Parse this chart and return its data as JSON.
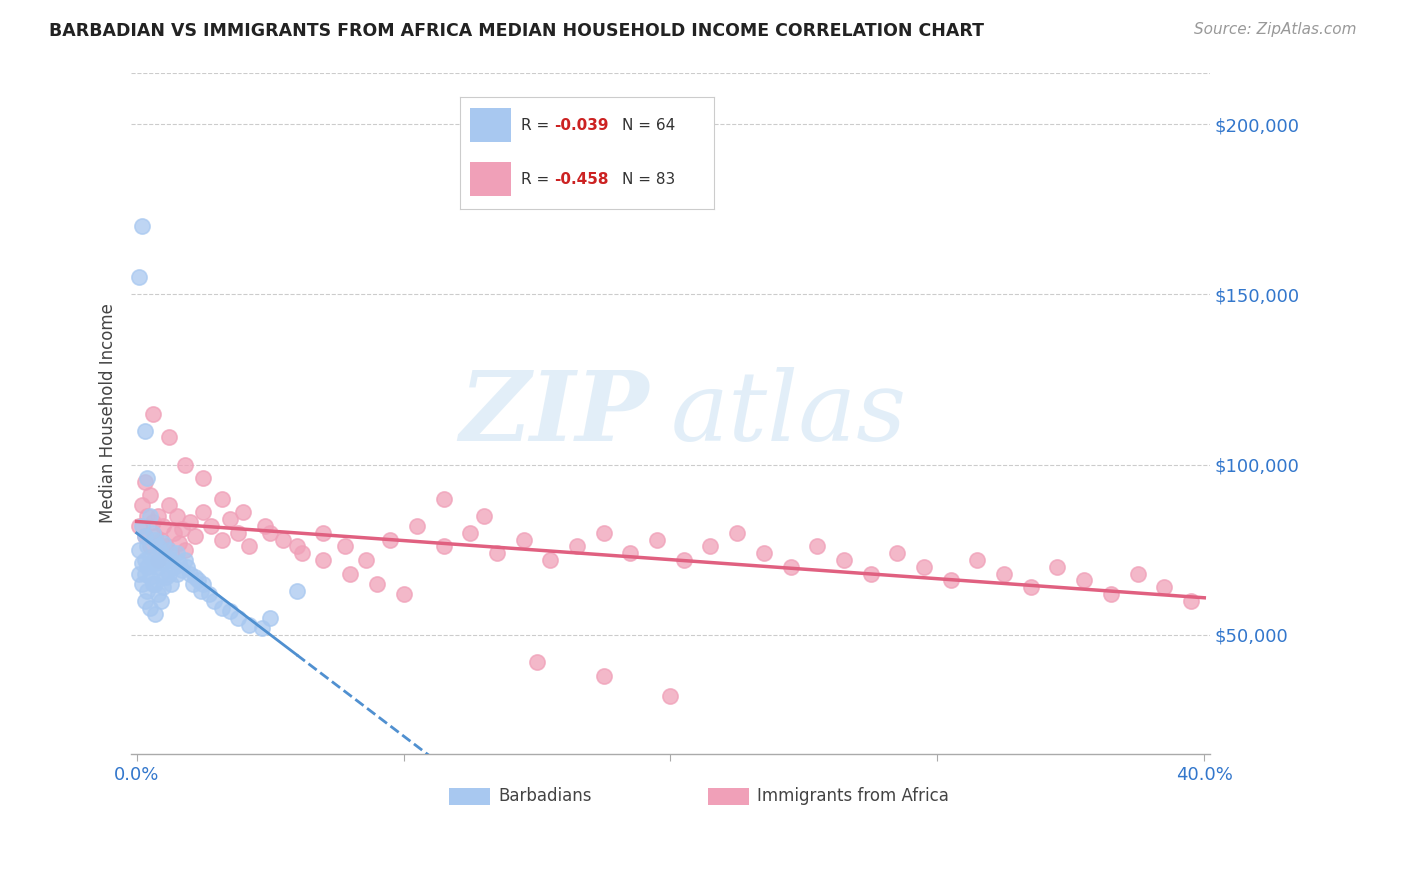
{
  "title": "BARBADIAN VS IMMIGRANTS FROM AFRICA MEDIAN HOUSEHOLD INCOME CORRELATION CHART",
  "source": "Source: ZipAtlas.com",
  "ylabel": "Median Household Income",
  "xlim": [
    -0.002,
    0.402
  ],
  "ylim": [
    15000,
    215000
  ],
  "yticks": [
    50000,
    100000,
    150000,
    200000
  ],
  "ytick_labels": [
    "$50,000",
    "$100,000",
    "$150,000",
    "$200,000"
  ],
  "xticks": [
    0.0,
    0.1,
    0.2,
    0.3,
    0.4
  ],
  "xtick_labels": [
    "0.0%",
    "",
    "",
    "",
    "40.0%"
  ],
  "legend_r1": "R = -0.039",
  "legend_n1": "N = 64",
  "legend_r2": "R = -0.458",
  "legend_n2": "N = 83",
  "legend_label1": "Barbadians",
  "legend_label2": "Immigrants from Africa",
  "color_barbadian": "#a8c8f0",
  "color_africa": "#f0a0b8",
  "color_trend_barb": "#5090d0",
  "color_trend_africa": "#e06080",
  "watermark_zip": "ZIP",
  "watermark_atlas": "atlas",
  "barbadian_x": [
    0.001,
    0.001,
    0.002,
    0.002,
    0.002,
    0.003,
    0.003,
    0.003,
    0.003,
    0.004,
    0.004,
    0.004,
    0.005,
    0.005,
    0.005,
    0.005,
    0.006,
    0.006,
    0.006,
    0.007,
    0.007,
    0.007,
    0.007,
    0.008,
    0.008,
    0.008,
    0.009,
    0.009,
    0.009,
    0.01,
    0.01,
    0.01,
    0.011,
    0.011,
    0.012,
    0.012,
    0.013,
    0.013,
    0.014,
    0.015,
    0.015,
    0.016,
    0.017,
    0.018,
    0.019,
    0.02,
    0.021,
    0.022,
    0.023,
    0.024,
    0.025,
    0.027,
    0.029,
    0.032,
    0.035,
    0.038,
    0.042,
    0.047,
    0.003,
    0.001,
    0.002,
    0.004,
    0.05,
    0.06
  ],
  "barbadian_y": [
    75000,
    68000,
    82000,
    71000,
    65000,
    79000,
    72000,
    68000,
    60000,
    76000,
    70000,
    63000,
    85000,
    73000,
    67000,
    58000,
    80000,
    72000,
    65000,
    78000,
    71000,
    65000,
    56000,
    76000,
    70000,
    62000,
    74000,
    68000,
    60000,
    77000,
    71000,
    64000,
    73000,
    67000,
    75000,
    68000,
    72000,
    65000,
    70000,
    74000,
    68000,
    71000,
    69000,
    72000,
    70000,
    68000,
    65000,
    67000,
    66000,
    63000,
    65000,
    62000,
    60000,
    58000,
    57000,
    55000,
    53000,
    52000,
    110000,
    155000,
    170000,
    96000,
    55000,
    63000
  ],
  "africa_x": [
    0.001,
    0.002,
    0.003,
    0.003,
    0.004,
    0.005,
    0.005,
    0.006,
    0.007,
    0.008,
    0.008,
    0.009,
    0.01,
    0.011,
    0.012,
    0.013,
    0.014,
    0.015,
    0.016,
    0.017,
    0.018,
    0.02,
    0.022,
    0.025,
    0.028,
    0.032,
    0.035,
    0.038,
    0.042,
    0.048,
    0.055,
    0.062,
    0.07,
    0.078,
    0.086,
    0.095,
    0.105,
    0.115,
    0.125,
    0.135,
    0.145,
    0.155,
    0.165,
    0.175,
    0.185,
    0.195,
    0.205,
    0.215,
    0.225,
    0.235,
    0.245,
    0.255,
    0.265,
    0.275,
    0.285,
    0.295,
    0.305,
    0.315,
    0.325,
    0.335,
    0.345,
    0.355,
    0.365,
    0.375,
    0.385,
    0.395,
    0.006,
    0.012,
    0.018,
    0.025,
    0.032,
    0.04,
    0.05,
    0.06,
    0.07,
    0.08,
    0.09,
    0.1,
    0.115,
    0.13,
    0.15,
    0.175,
    0.2
  ],
  "africa_y": [
    82000,
    88000,
    79000,
    95000,
    85000,
    91000,
    76000,
    83000,
    79000,
    85000,
    72000,
    78000,
    82000,
    76000,
    88000,
    74000,
    80000,
    85000,
    77000,
    81000,
    75000,
    83000,
    79000,
    86000,
    82000,
    78000,
    84000,
    80000,
    76000,
    82000,
    78000,
    74000,
    80000,
    76000,
    72000,
    78000,
    82000,
    76000,
    80000,
    74000,
    78000,
    72000,
    76000,
    80000,
    74000,
    78000,
    72000,
    76000,
    80000,
    74000,
    70000,
    76000,
    72000,
    68000,
    74000,
    70000,
    66000,
    72000,
    68000,
    64000,
    70000,
    66000,
    62000,
    68000,
    64000,
    60000,
    115000,
    108000,
    100000,
    96000,
    90000,
    86000,
    80000,
    76000,
    72000,
    68000,
    65000,
    62000,
    90000,
    85000,
    42000,
    38000,
    32000
  ]
}
